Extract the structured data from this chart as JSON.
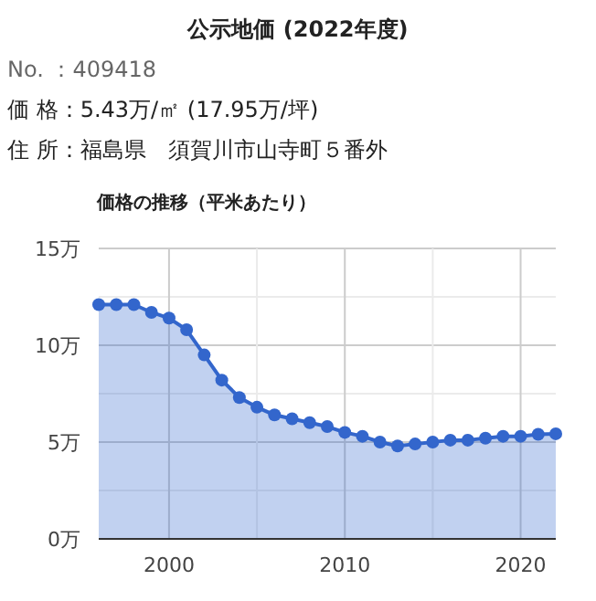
{
  "chart_data": {
    "type": "area",
    "title": "公示地価 (2022年度)",
    "subtitle": "価格の推移（平米あたり）",
    "annotations": [
      "No. ：409418",
      "価 格：5.43万/㎡ (17.95万/坪)",
      "住 所：福島県　須賀川市山寺町５番外"
    ],
    "x": [
      1996,
      1997,
      1998,
      1999,
      2000,
      2001,
      2002,
      2003,
      2004,
      2005,
      2006,
      2007,
      2008,
      2009,
      2010,
      2011,
      2012,
      2013,
      2014,
      2015,
      2016,
      2017,
      2018,
      2019,
      2020,
      2021,
      2022
    ],
    "series": [
      {
        "color": "#3366cc",
        "values": [
          12.1,
          12.1,
          12.1,
          11.7,
          11.4,
          10.8,
          9.5,
          8.2,
          7.3,
          6.8,
          6.4,
          6.2,
          6.0,
          5.8,
          5.5,
          5.3,
          5.0,
          4.8,
          4.9,
          5.0,
          5.1,
          5.1,
          5.2,
          5.3,
          5.3,
          5.4,
          5.43
        ]
      }
    ],
    "xlim": [
      1996,
      2022
    ],
    "xticks": [
      2000,
      {
        "value": 2005,
        "label": null
      },
      2010,
      {
        "value": 2015,
        "label": null
      },
      2020
    ],
    "ylim": [
      0,
      15
    ],
    "yticks": [
      {
        "value": 0,
        "label": "0万"
      },
      {
        "value": 2.5,
        "label": null
      },
      {
        "value": 5,
        "label": "5万"
      },
      {
        "value": 7.5,
        "label": null
      },
      {
        "value": 10,
        "label": "10万"
      },
      {
        "value": 12.5,
        "label": null
      },
      {
        "value": 15,
        "label": "15万"
      }
    ],
    "grid": true,
    "marker": "circle"
  }
}
